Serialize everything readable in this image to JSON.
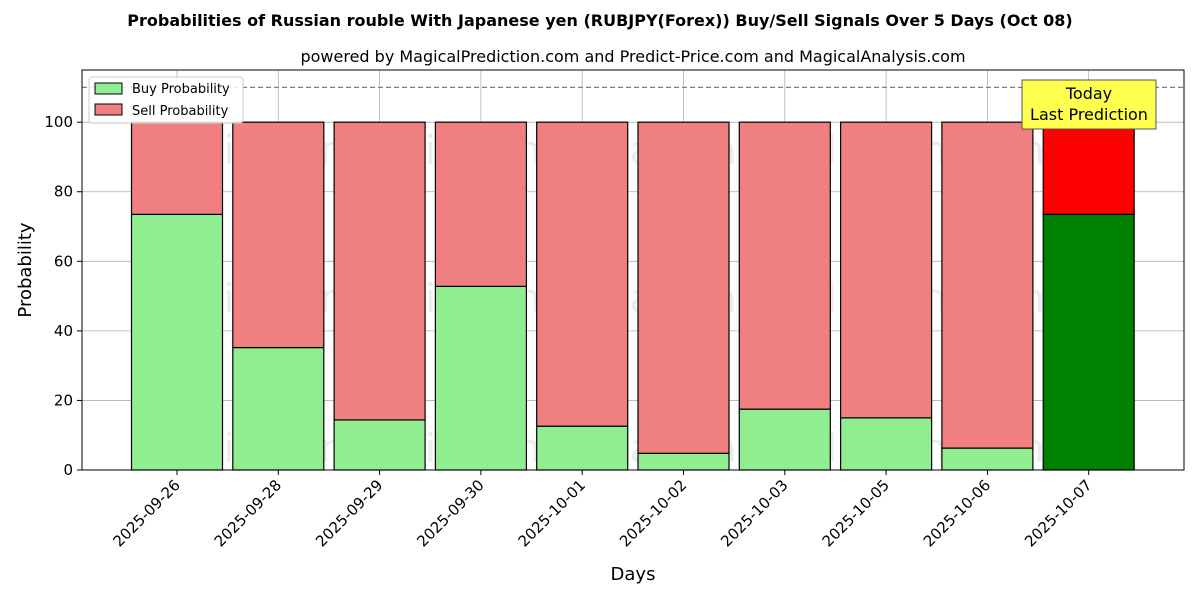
{
  "chart_data": {
    "type": "bar",
    "stacked": true,
    "title": "Probabilities of Russian rouble With Japanese yen (RUBJPY(Forex)) Buy/Sell Signals Over 5 Days (Oct 08)",
    "subtitle": "powered by MagicalPrediction.com and Predict-Price.com and MagicalAnalysis.com",
    "xlabel": "Days",
    "ylabel": "Probability",
    "ylim": [
      0,
      115
    ],
    "yticks": [
      0,
      20,
      40,
      60,
      80,
      100
    ],
    "reference_line": 110,
    "grid": true,
    "legend_position": "top-left",
    "categories": [
      "2025-09-26",
      "2025-09-28",
      "2025-09-29",
      "2025-09-30",
      "2025-10-01",
      "2025-10-02",
      "2025-10-03",
      "2025-10-05",
      "2025-10-06",
      "2025-10-07"
    ],
    "series": [
      {
        "name": "Buy Probability",
        "color": "#90ee90",
        "highlight_color": "#008000",
        "values": [
          73.5,
          35.2,
          14.4,
          52.8,
          12.6,
          4.8,
          17.5,
          15.0,
          6.3,
          73.5
        ]
      },
      {
        "name": "Sell Probability",
        "color": "#f08080",
        "highlight_color": "#ff0000",
        "values": [
          26.5,
          64.8,
          85.6,
          47.2,
          87.4,
          95.2,
          82.5,
          85.0,
          93.7,
          26.5
        ]
      }
    ],
    "highlight_index": 9,
    "annotation": {
      "lines": [
        "Today",
        "Last Prediction"
      ],
      "color": "#ffff4d"
    },
    "watermarks": [
      "MagicalAnalysis.com",
      "MagicalPrediction.com"
    ]
  }
}
